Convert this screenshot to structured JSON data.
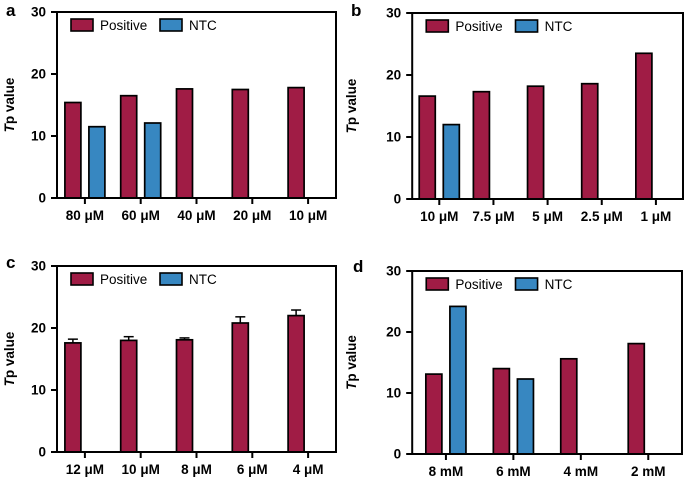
{
  "figure": {
    "ylabel_italic": "T",
    "ylabel_rest": "p value",
    "legend_labels": [
      "Positive",
      "NTC"
    ],
    "yticks": [
      0,
      10,
      20,
      30
    ]
  },
  "colors": {
    "positive": "#A01C45",
    "ntc": "#3787C1",
    "axis": "#000000",
    "background": "#ffffff"
  },
  "chart_data": [
    {
      "type": "bar",
      "panel_label": "a",
      "title": "",
      "xlabel": "",
      "ylabel": "Tp value",
      "ylim": [
        0,
        30
      ],
      "yticks": [
        0,
        10,
        20,
        30
      ],
      "legend": [
        "Positive",
        "NTC"
      ],
      "legend_position": "top-inside",
      "grid": false,
      "categories": [
        "80 μM",
        "60 μM",
        "40 μM",
        "20 μM",
        "10 μM"
      ],
      "series": [
        {
          "name": "Positive",
          "color_key": "positive",
          "values": [
            15.4,
            16.5,
            17.6,
            17.5,
            17.8
          ]
        },
        {
          "name": "NTC",
          "color_key": "ntc",
          "values": [
            11.5,
            12.1,
            null,
            null,
            null
          ]
        }
      ]
    },
    {
      "type": "bar",
      "panel_label": "b",
      "title": "",
      "xlabel": "",
      "ylabel": "Tp value",
      "ylim": [
        0,
        30
      ],
      "yticks": [
        0,
        10,
        20,
        30
      ],
      "legend": [
        "Positive",
        "NTC"
      ],
      "legend_position": "top-inside",
      "grid": false,
      "categories": [
        "10 μM",
        "7.5 μM",
        "5 μM",
        "2.5 μM",
        "1 μM"
      ],
      "series": [
        {
          "name": "Positive",
          "color_key": "positive",
          "values": [
            16.6,
            17.3,
            18.2,
            18.6,
            23.5
          ]
        },
        {
          "name": "NTC",
          "color_key": "ntc",
          "values": [
            12.0,
            null,
            null,
            null,
            null
          ]
        }
      ]
    },
    {
      "type": "bar",
      "panel_label": "c",
      "title": "",
      "xlabel": "",
      "ylabel": "Tp value",
      "ylim": [
        0,
        30
      ],
      "yticks": [
        0,
        10,
        20,
        30
      ],
      "legend": [
        "Positive",
        "NTC"
      ],
      "legend_position": "top-inside",
      "grid": false,
      "categories": [
        "12 μM",
        "10 μM",
        "8 μM",
        "6 μM",
        "4 μM"
      ],
      "series": [
        {
          "name": "Positive",
          "color_key": "positive",
          "values": [
            17.6,
            18.0,
            18.1,
            20.8,
            22.0
          ],
          "errors": [
            0.6,
            0.6,
            0.3,
            1.0,
            0.9
          ]
        },
        {
          "name": "NTC",
          "color_key": "ntc",
          "values": [
            null,
            null,
            null,
            null,
            null
          ]
        }
      ]
    },
    {
      "type": "bar",
      "panel_label": "d",
      "title": "",
      "xlabel": "",
      "ylabel": "Tp value",
      "ylim": [
        0,
        30
      ],
      "yticks": [
        0,
        10,
        20,
        30
      ],
      "legend": [
        "Positive",
        "NTC"
      ],
      "legend_position": "top-inside",
      "grid": false,
      "categories": [
        "8 mM",
        "6 mM",
        "4 mM",
        "2 mM"
      ],
      "series": [
        {
          "name": "Positive",
          "color_key": "positive",
          "values": [
            13.1,
            14.0,
            15.6,
            18.1
          ]
        },
        {
          "name": "NTC",
          "color_key": "ntc",
          "values": [
            24.2,
            12.3,
            null,
            null
          ]
        }
      ]
    }
  ]
}
